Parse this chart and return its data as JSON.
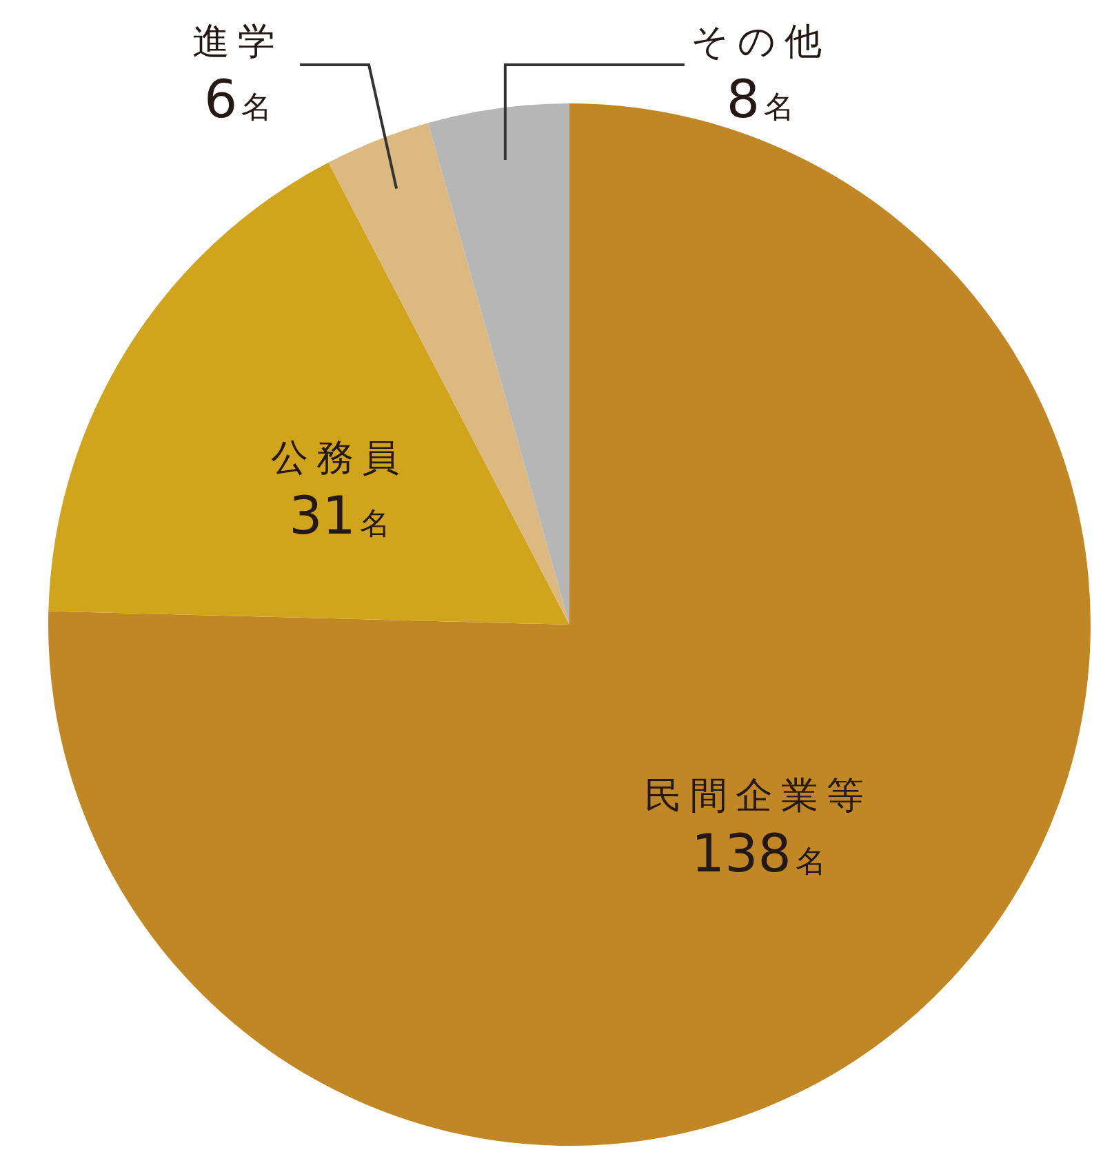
{
  "chart_data": {
    "type": "pie",
    "categories": [
      "民間企業等",
      "公務員",
      "進学",
      "その他"
    ],
    "values": [
      138,
      31,
      6,
      8
    ],
    "colors": [
      "#c28725",
      "#d0a51b",
      "#dbb981",
      "#b6b6b6"
    ],
    "value_labels": [
      "138名",
      "31名",
      "6名",
      "8名"
    ]
  }
}
